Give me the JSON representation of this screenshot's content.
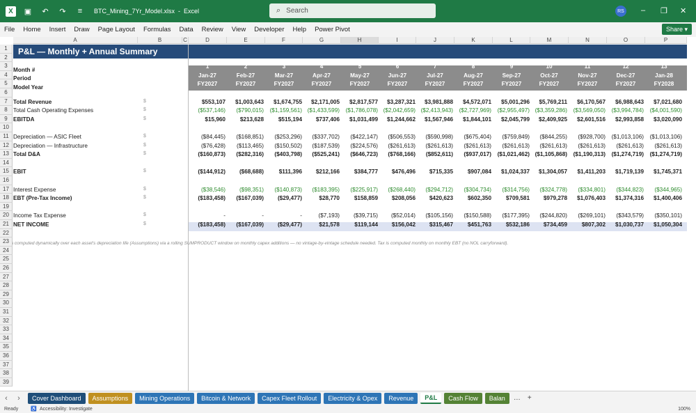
{
  "title_bar": {
    "filename": "BTC_Mining_7Yr_Model.xlsx",
    "separator": "-",
    "app": "Excel",
    "search_placeholder": "Search",
    "avatar_initials": "RS",
    "minimize": "–",
    "restore": "❐",
    "close": "✕"
  },
  "menu": {
    "items": [
      "File",
      "Home",
      "Insert",
      "Draw",
      "Page Layout",
      "Formulas",
      "Data",
      "Review",
      "View",
      "Developer",
      "Help",
      "Power Pivot"
    ],
    "share_label": "Share"
  },
  "columns": [
    "A",
    "B",
    "C",
    "D",
    "E",
    "F",
    "G",
    "H",
    "I",
    "J",
    "K",
    "L",
    "M",
    "N",
    "O",
    "P"
  ],
  "rows": [
    "1",
    "2",
    "3",
    "4",
    "5",
    "6",
    "7",
    "8",
    "9",
    "10",
    "11",
    "12",
    "13",
    "14",
    "15",
    "16",
    "17",
    "18",
    "19",
    "20",
    "21",
    "22",
    "23",
    "24",
    "25",
    "26",
    "27",
    "28",
    "29",
    "30",
    "31",
    "32",
    "33",
    "34",
    "35",
    "36",
    "37",
    "38",
    "39"
  ],
  "sheet": {
    "title": "P&L  —  Monthly + Annual Summary",
    "header_labels": {
      "month": "Month #",
      "period": "Period",
      "model_year": "Model Year"
    },
    "months": [
      "1",
      "2",
      "3",
      "4",
      "5",
      "6",
      "7",
      "8",
      "9",
      "10",
      "11",
      "12",
      "13"
    ],
    "periods": [
      "Jan-27",
      "Feb-27",
      "Mar-27",
      "Apr-27",
      "May-27",
      "Jun-27",
      "Jul-27",
      "Aug-27",
      "Sep-27",
      "Oct-27",
      "Nov-27",
      "Dec-27",
      "Jan-28"
    ],
    "model_years": [
      "FY2027",
      "FY2027",
      "FY2027",
      "FY2027",
      "FY2027",
      "FY2027",
      "FY2027",
      "FY2027",
      "FY2027",
      "FY2027",
      "FY2027",
      "FY2027",
      "FY2028"
    ],
    "hash_symbol": "$",
    "lines": [
      {
        "label": "Total Revenue",
        "bold": true,
        "green": false,
        "values": [
          "$553,107",
          "$1,003,643",
          "$1,674,755",
          "$2,171,005",
          "$2,817,577",
          "$3,287,321",
          "$3,981,888",
          "$4,572,071",
          "$5,001,296",
          "$5,769,211",
          "$6,170,567",
          "$6,988,643",
          "$7,021,680"
        ]
      },
      {
        "label": "Total Cash Operating Expenses",
        "bold": false,
        "green": true,
        "values": [
          "($537,146)",
          "($790,015)",
          "($1,159,561)",
          "($1,433,599)",
          "($1,786,078)",
          "($2,042,659)",
          "($2,413,943)",
          "($2,727,969)",
          "($2,955,497)",
          "($3,359,286)",
          "($3,569,050)",
          "($3,994,784)",
          "($4,001,590)"
        ]
      },
      {
        "label": "EBITDA",
        "bold": true,
        "green": false,
        "values": [
          "$15,960",
          "$213,628",
          "$515,194",
          "$737,406",
          "$1,031,499",
          "$1,244,662",
          "$1,567,946",
          "$1,844,101",
          "$2,045,799",
          "$2,409,925",
          "$2,601,516",
          "$2,993,858",
          "$3,020,090"
        ]
      },
      {
        "label": "Depreciation — ASIC Fleet",
        "bold": false,
        "green": false,
        "values": [
          "($84,445)",
          "($168,851)",
          "($253,296)",
          "($337,702)",
          "($422,147)",
          "($506,553)",
          "($590,998)",
          "($675,404)",
          "($759,849)",
          "($844,255)",
          "($928,700)",
          "($1,013,106)",
          "($1,013,106)"
        ]
      },
      {
        "label": "Depreciation — Infrastructure",
        "bold": false,
        "green": false,
        "values": [
          "($76,428)",
          "($113,465)",
          "($150,502)",
          "($187,539)",
          "($224,576)",
          "($261,613)",
          "($261,613)",
          "($261,613)",
          "($261,613)",
          "($261,613)",
          "($261,613)",
          "($261,613)",
          "($261,613)"
        ]
      },
      {
        "label": "Total D&A",
        "bold": true,
        "green": false,
        "values": [
          "($160,873)",
          "($282,316)",
          "($403,798)",
          "($525,241)",
          "($646,723)",
          "($768,166)",
          "($852,611)",
          "($937,017)",
          "($1,021,462)",
          "($1,105,868)",
          "($1,190,313)",
          "($1,274,719)",
          "($1,274,719)"
        ]
      },
      {
        "label": "EBIT",
        "bold": true,
        "green": false,
        "values": [
          "($144,912)",
          "($68,688)",
          "$111,396",
          "$212,166",
          "$384,777",
          "$476,496",
          "$715,335",
          "$907,084",
          "$1,024,337",
          "$1,304,057",
          "$1,411,203",
          "$1,719,139",
          "$1,745,371"
        ]
      },
      {
        "label": "Interest Expense",
        "bold": false,
        "green": true,
        "values": [
          "($38,546)",
          "($98,351)",
          "($140,873)",
          "($183,395)",
          "($225,917)",
          "($268,440)",
          "($294,712)",
          "($304,734)",
          "($314,756)",
          "($324,778)",
          "($334,801)",
          "($344,823)",
          "($344,965)"
        ]
      },
      {
        "label": "EBT (Pre-Tax Income)",
        "bold": true,
        "green": false,
        "values": [
          "($183,458)",
          "($167,039)",
          "($29,477)",
          "$28,770",
          "$158,859",
          "$208,056",
          "$420,623",
          "$602,350",
          "$709,581",
          "$979,278",
          "$1,076,403",
          "$1,374,316",
          "$1,400,406"
        ]
      },
      {
        "label": "Income Tax Expense",
        "bold": false,
        "green": false,
        "values": [
          "-",
          "-",
          "-",
          "($7,193)",
          "($39,715)",
          "($52,014)",
          "($105,156)",
          "($150,588)",
          "($177,395)",
          "($244,820)",
          "($269,101)",
          "($343,579)",
          "($350,101)"
        ]
      },
      {
        "label": "NET INCOME",
        "bold": true,
        "green": false,
        "values": [
          "($183,458)",
          "($167,039)",
          "($29,477)",
          "$21,578",
          "$119,144",
          "$156,042",
          "$315,467",
          "$451,763",
          "$532,186",
          "$734,459",
          "$807,302",
          "$1,030,737",
          "$1,050,304"
        ]
      }
    ],
    "footnote": "D&A computed dynamically over each asset's depreciation life (Assumptions) via a rolling SUMPRODUCT window on monthly capex additions — no vintage-by-vintage schedule needed. Tax is computed monthly on monthly EBT (no NOL carryforward)."
  },
  "tabs": [
    {
      "label": "Cover Dashboard",
      "color": "#1f4e79"
    },
    {
      "label": "Assumptions",
      "color": "#c09020"
    },
    {
      "label": "Mining Operations",
      "color": "#2e75b6"
    },
    {
      "label": "Bitcoin & Network",
      "color": "#2e75b6"
    },
    {
      "label": "Capex Fleet Rollout",
      "color": "#2e75b6"
    },
    {
      "label": "Electricity & Opex",
      "color": "#2e75b6"
    },
    {
      "label": "Revenue",
      "color": "#2e75b6"
    },
    {
      "label": "P&L",
      "color": "#70ad47",
      "active": true
    },
    {
      "label": "Cash Flow",
      "color": "#548235"
    },
    {
      "label": "Balan",
      "color": "#548235"
    }
  ],
  "tab_nav": {
    "prev": "‹",
    "next": "›",
    "more": "…",
    "add": "+"
  },
  "status": {
    "ready": "Ready",
    "accessibility": "Accessibility: Investigate",
    "zoom": "100%"
  }
}
